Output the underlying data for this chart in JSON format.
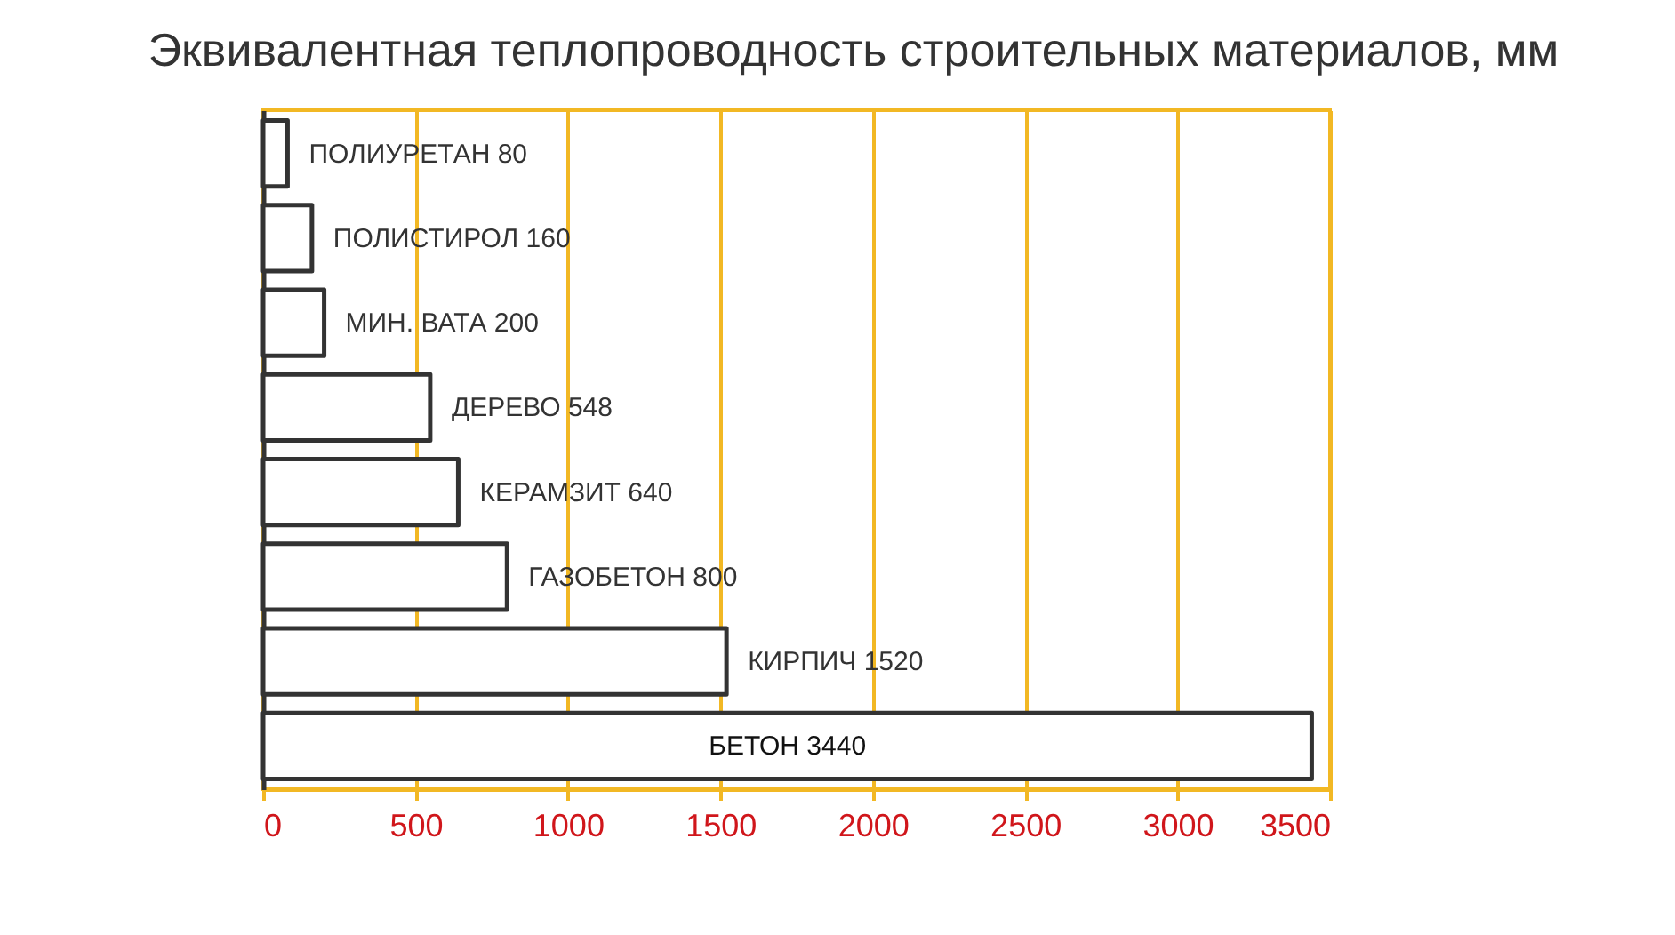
{
  "chart_data": {
    "type": "bar",
    "orientation": "horizontal",
    "title": "Эквивалентная теплопроводность строительных материалов, мм",
    "categories": [
      "ПОЛИУРЕТАН 80",
      "ПОЛИСТИРОЛ 160",
      "МИН. ВАТА 200",
      "ДЕРЕВО 548",
      "КЕРАМЗИТ 640",
      "ГАЗОБЕТОН 800",
      "КИРПИЧ 1520",
      "БЕТОН 3440"
    ],
    "values": [
      80,
      160,
      200,
      548,
      640,
      800,
      1520,
      3440
    ],
    "color": "#ffffff",
    "xlim": [
      0,
      3500
    ],
    "xticks": [
      0,
      500,
      1000,
      1500,
      2000,
      2500,
      3000,
      3500
    ],
    "grid": "x",
    "tick_labels": "x"
  }
}
